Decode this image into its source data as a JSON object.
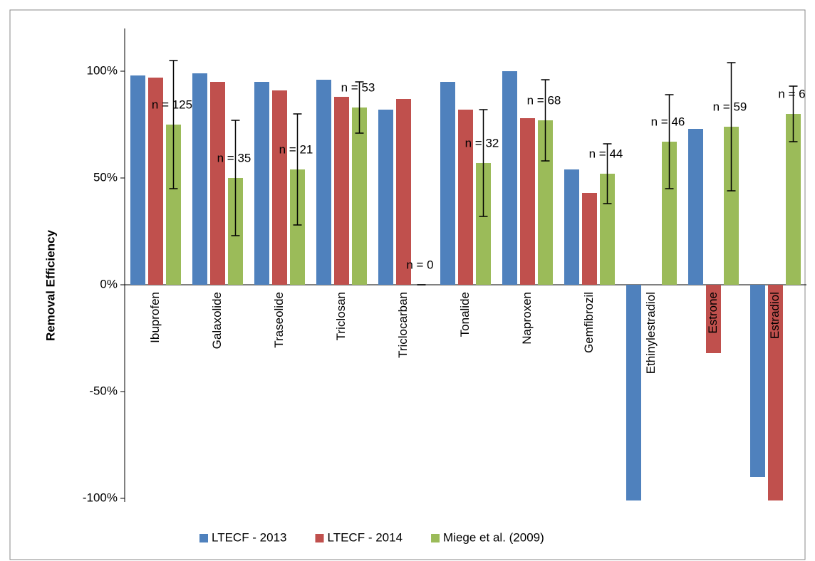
{
  "chart_data": {
    "type": "bar",
    "y_label": "Removal Efficiency",
    "categories": [
      "Ibuprofen",
      "Galaxolide",
      "Traseolide",
      "Triclosan",
      "Triclocarban",
      "Tonalide",
      "Naproxen",
      "Gemfibrozil",
      "Ethinylestradiol",
      "Estrone",
      "Estradiol"
    ],
    "series": [
      {
        "name": "LTECF - 2013",
        "color": "#4f81bd",
        "values": [
          98,
          99,
          95,
          96,
          82,
          95,
          100,
          54,
          -101,
          73,
          -90
        ]
      },
      {
        "name": "LTECF - 2014",
        "color": "#c0504d",
        "values": [
          97,
          95,
          91,
          88,
          87,
          82,
          78,
          43,
          null,
          -32,
          -101
        ]
      },
      {
        "name": "Miege et al. (2009)",
        "color": "#9bbb59",
        "values": [
          75,
          50,
          54,
          83,
          0,
          57,
          77,
          52,
          67,
          74,
          80
        ],
        "errors": [
          30,
          27,
          26,
          12,
          0,
          25,
          19,
          14,
          22,
          30,
          13
        ]
      }
    ],
    "annotations": [
      "n = 125",
      "n = 35",
      "n = 21",
      "n = 53",
      "n = 0",
      "n = 32",
      "n = 68",
      "n = 44",
      "n = 46",
      "n = 59",
      "n = 6"
    ],
    "ylim": [
      -100,
      120
    ],
    "yticks": [
      {
        "value": -100,
        "label": "-100%"
      },
      {
        "value": -50,
        "label": "-50%"
      },
      {
        "value": 0,
        "label": "0%"
      },
      {
        "value": 50,
        "label": "50%"
      },
      {
        "value": 100,
        "label": "100%"
      }
    ],
    "legend": "bottom"
  }
}
